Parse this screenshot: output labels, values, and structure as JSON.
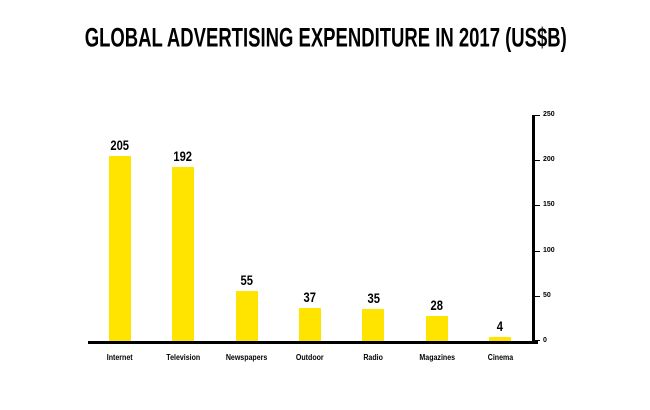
{
  "title": "GLOBAL ADVERTISING EXPENDITURE IN 2017 (US$B)",
  "colors": {
    "bar": "#FFE400",
    "axis": "#000000",
    "background": "#FFFFFF",
    "text": "#000000"
  },
  "chart_data": {
    "type": "bar",
    "title": "GLOBAL ADVERTISING EXPENDITURE IN 2017 (US$B)",
    "categories": [
      "Internet",
      "Television",
      "Newspapers",
      "Outdoor",
      "Radio",
      "Magazines",
      "Cinema"
    ],
    "values": [
      205,
      192,
      55,
      37,
      35,
      28,
      4
    ],
    "value_labels": [
      "205",
      "192",
      "55",
      "37",
      "35",
      "28",
      "4"
    ],
    "xlabel": "",
    "ylabel": "",
    "ylim": [
      0,
      250
    ],
    "y_ticks": [
      250,
      200,
      150,
      100,
      50,
      0
    ],
    "axis_position": "right",
    "grid": false,
    "legend": "none",
    "bar_color": "#FFE400"
  }
}
